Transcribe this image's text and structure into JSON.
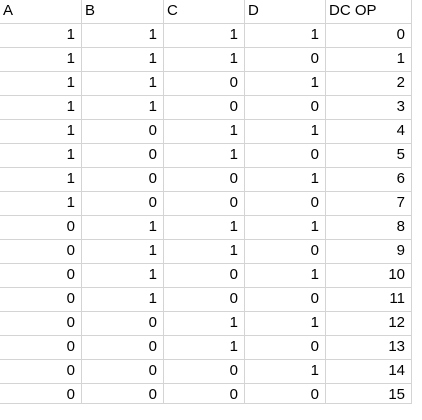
{
  "headers": [
    "A",
    "B",
    "C",
    "D",
    "DC OP"
  ],
  "rows": [
    [
      "1",
      "1",
      "1",
      "1",
      "0"
    ],
    [
      "1",
      "1",
      "1",
      "0",
      "1"
    ],
    [
      "1",
      "1",
      "0",
      "1",
      "2"
    ],
    [
      "1",
      "1",
      "0",
      "0",
      "3"
    ],
    [
      "1",
      "0",
      "1",
      "1",
      "4"
    ],
    [
      "1",
      "0",
      "1",
      "0",
      "5"
    ],
    [
      "1",
      "0",
      "0",
      "1",
      "6"
    ],
    [
      "1",
      "0",
      "0",
      "0",
      "7"
    ],
    [
      "0",
      "1",
      "1",
      "1",
      "8"
    ],
    [
      "0",
      "1",
      "1",
      "0",
      "9"
    ],
    [
      "0",
      "1",
      "0",
      "1",
      "10"
    ],
    [
      "0",
      "1",
      "0",
      "0",
      "11"
    ],
    [
      "0",
      "0",
      "1",
      "1",
      "12"
    ],
    [
      "0",
      "0",
      "1",
      "0",
      "13"
    ],
    [
      "0",
      "0",
      "0",
      "1",
      "14"
    ],
    [
      "0",
      "0",
      "0",
      "0",
      "15"
    ]
  ]
}
